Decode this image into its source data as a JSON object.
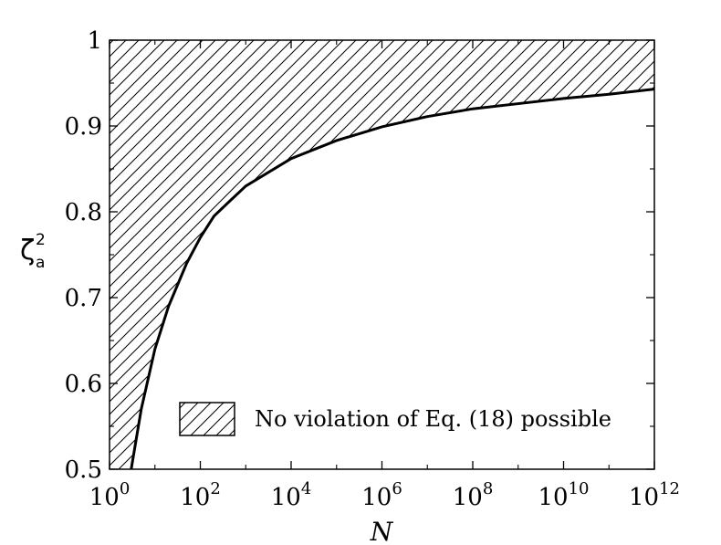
{
  "chart_data": {
    "type": "area",
    "xlabel": "N",
    "ylabel": {
      "symbol": "ζ",
      "superscript": "2",
      "subscript": "a"
    },
    "x_scale": "log",
    "xlim": [
      1,
      1000000000000.0
    ],
    "ylim": [
      0.5,
      1
    ],
    "x_ticks": [
      {
        "base": "10",
        "exp": "0",
        "value": 1
      },
      {
        "base": "10",
        "exp": "2",
        "value": 100
      },
      {
        "base": "10",
        "exp": "4",
        "value": 10000
      },
      {
        "base": "10",
        "exp": "6",
        "value": 1000000
      },
      {
        "base": "10",
        "exp": "8",
        "value": 100000000
      },
      {
        "base": "10",
        "exp": "10",
        "value": 10000000000
      },
      {
        "base": "10",
        "exp": "12",
        "value": 1000000000000
      }
    ],
    "y_ticks": [
      "0.5",
      "0.6",
      "0.7",
      "0.8",
      "0.9",
      "1"
    ],
    "grid": false,
    "legend": {
      "position": "bottom-right",
      "label": "No violation of Eq. (18) possible",
      "fill": "hatched"
    },
    "series": [
      {
        "x": [
          3,
          5,
          10,
          20,
          50,
          100,
          200,
          500,
          1000,
          10000,
          100000,
          1000000,
          10000000,
          100000000,
          1000000000,
          10000000000,
          100000000000,
          1000000000000
        ],
        "y": [
          0.5,
          0.57,
          0.64,
          0.69,
          0.74,
          0.77,
          0.795,
          0.815,
          0.83,
          0.862,
          0.883,
          0.899,
          0.911,
          0.92,
          0.926,
          0.932,
          0.937,
          0.943
        ]
      }
    ]
  }
}
